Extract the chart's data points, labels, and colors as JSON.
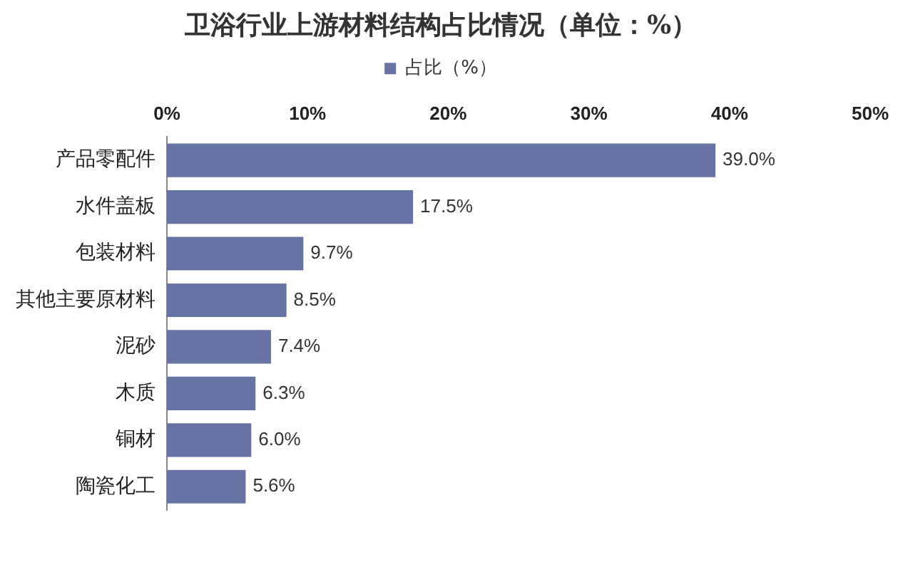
{
  "chart_data": {
    "type": "bar",
    "orientation": "horizontal",
    "title": "卫浴行业上游材料结构占比情况（单位：%）",
    "categories": [
      "产品零配件",
      "水件盖板",
      "包装材料",
      "其他主要原材料",
      "泥砂",
      "木质",
      "铜材",
      "陶瓷化工"
    ],
    "series": [
      {
        "name": "占比（%）",
        "color": "#6673a3",
        "values": [
          39.0,
          17.5,
          9.7,
          8.5,
          7.4,
          6.3,
          6.0,
          5.6
        ],
        "value_labels": [
          "39.0%",
          "17.5%",
          "9.7%",
          "8.5%",
          "7.4%",
          "6.3%",
          "6.0%",
          "5.6%"
        ]
      }
    ],
    "xlim": [
      0,
      50
    ],
    "xticks": [
      {
        "value": 0,
        "label": "0%"
      },
      {
        "value": 10,
        "label": "10%"
      },
      {
        "value": 20,
        "label": "20%"
      },
      {
        "value": 30,
        "label": "30%"
      },
      {
        "value": 40,
        "label": "40%"
      },
      {
        "value": 50,
        "label": "50%"
      }
    ],
    "grid": false,
    "legend": "top"
  }
}
